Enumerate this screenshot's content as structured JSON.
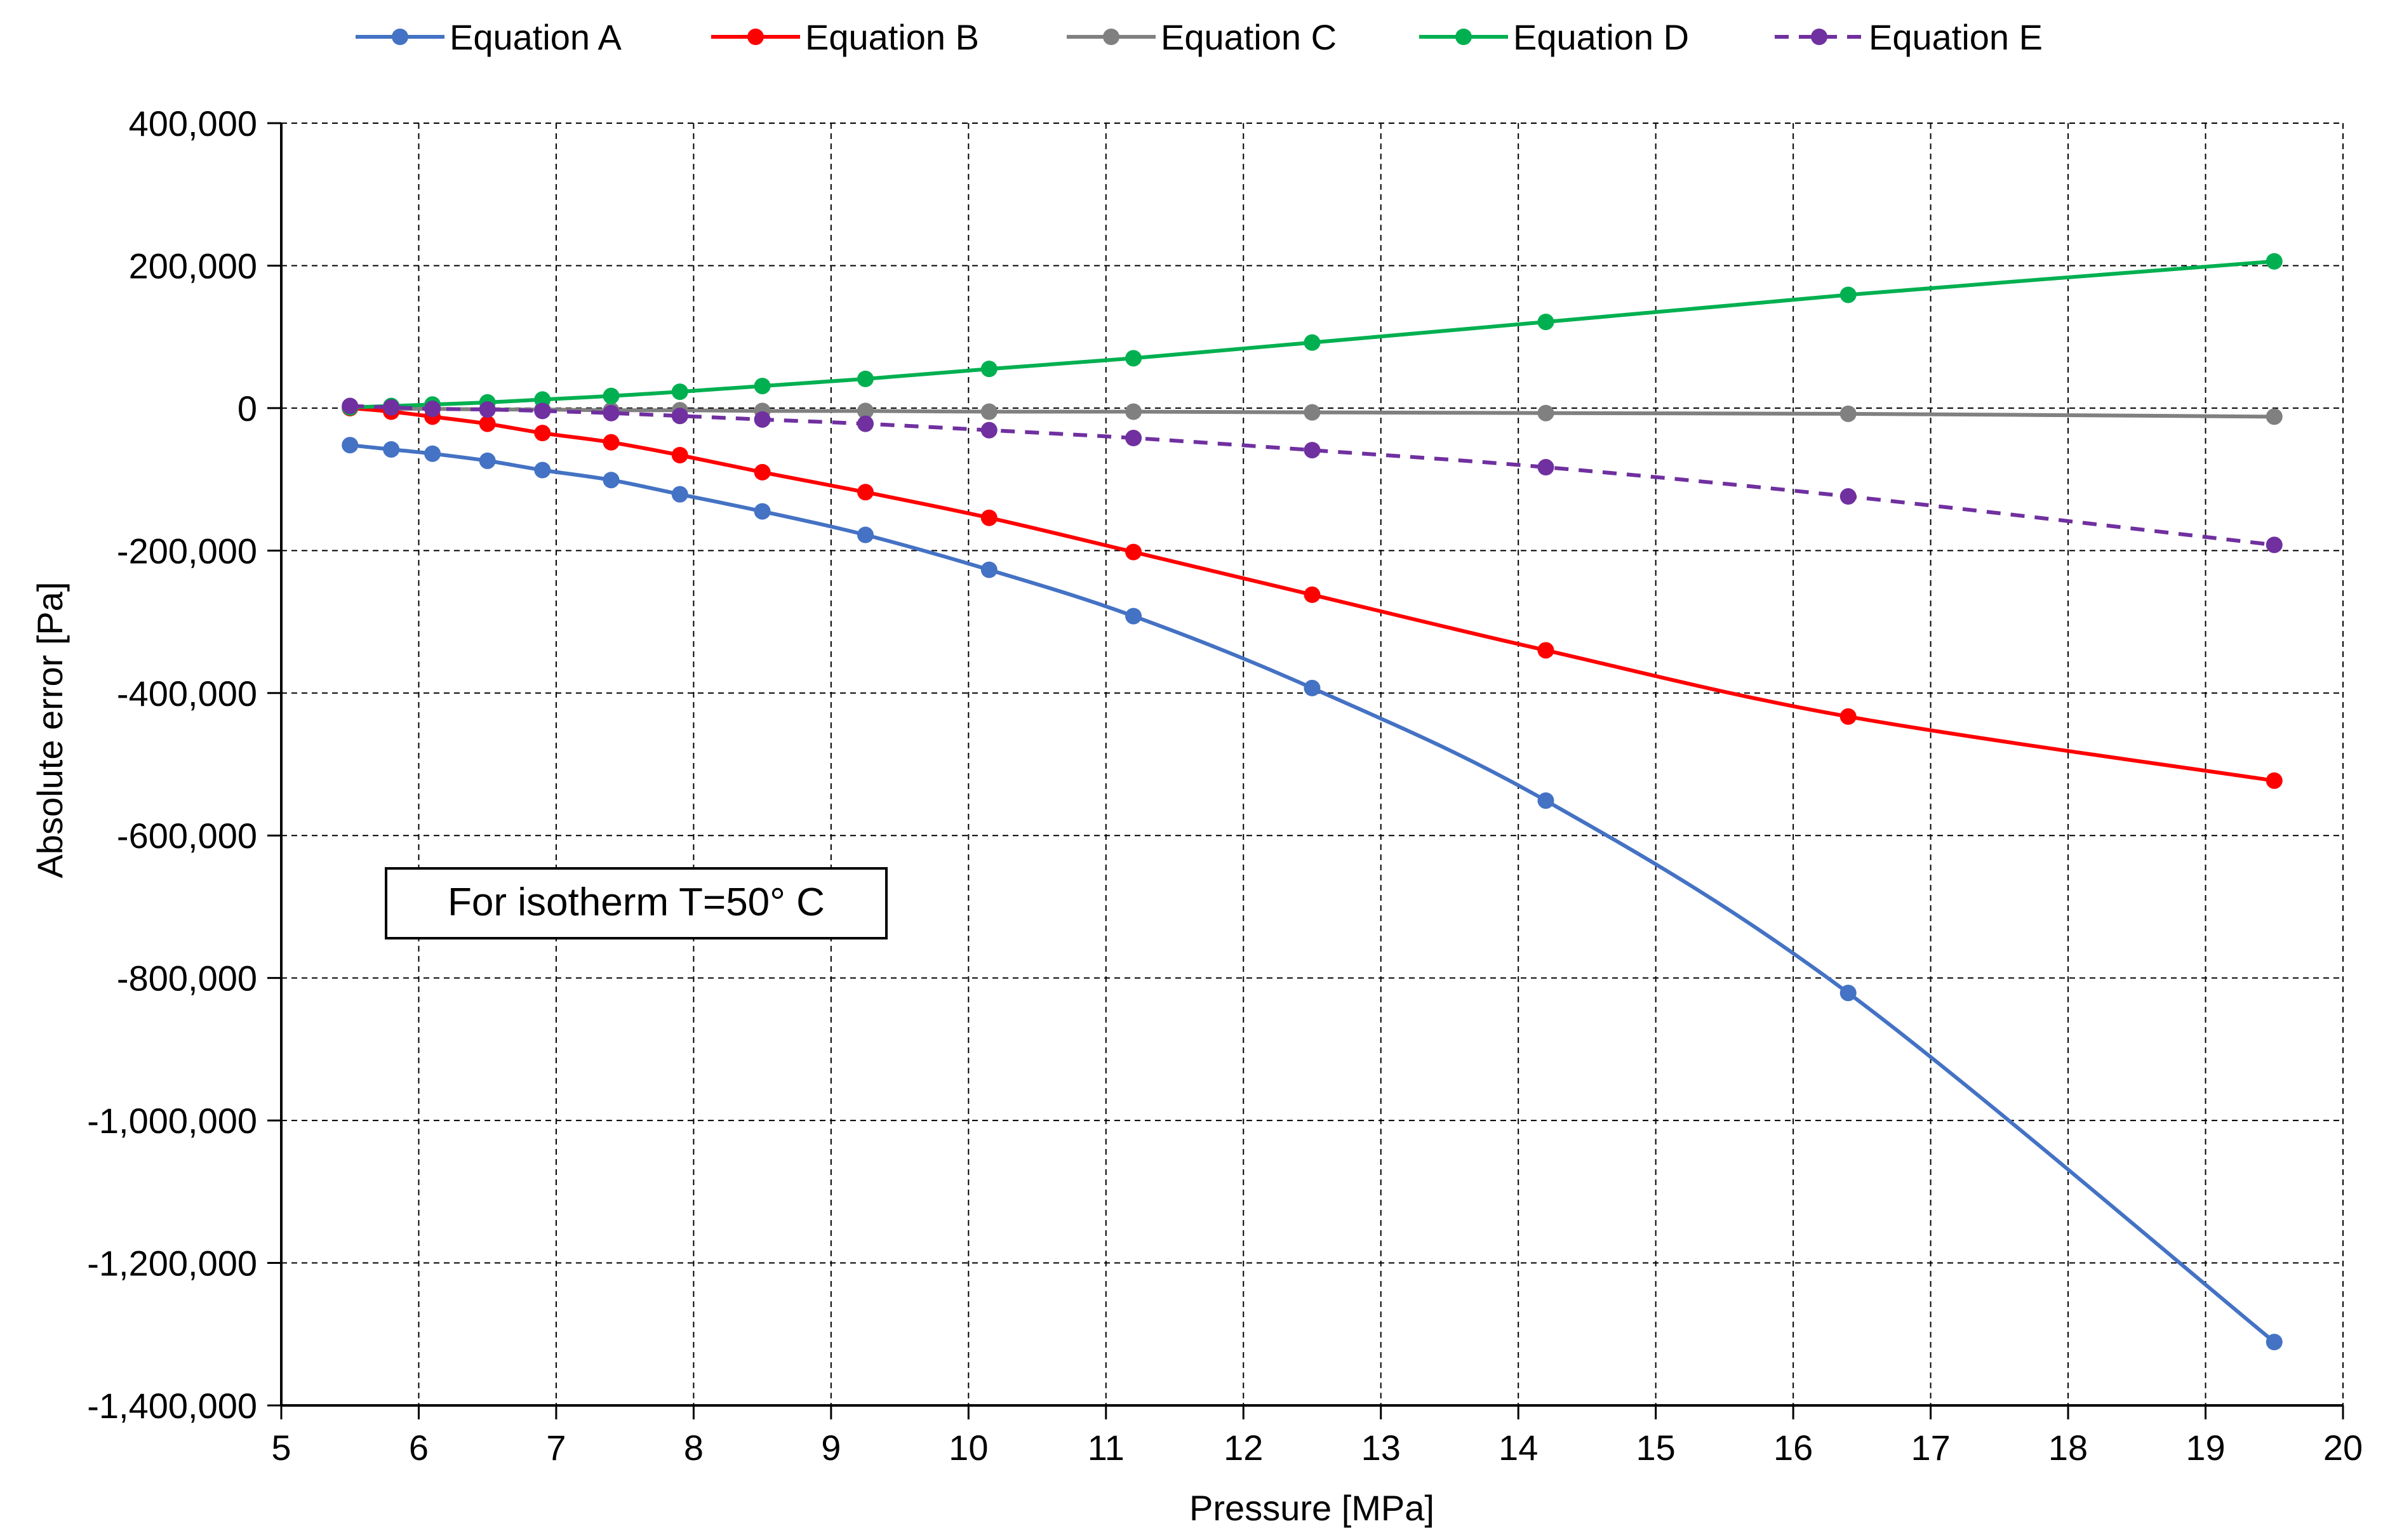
{
  "chart_data": {
    "type": "line",
    "title": "",
    "xlabel": "Pressure [MPa]",
    "ylabel": "Absolute error [Pa]",
    "xlim": [
      5,
      20
    ],
    "ylim": [
      -1400000,
      400000
    ],
    "xticks": [
      5,
      6,
      7,
      8,
      9,
      10,
      11,
      12,
      13,
      14,
      15,
      16,
      17,
      18,
      19,
      20
    ],
    "yticks": [
      400000,
      200000,
      0,
      -200000,
      -400000,
      -600000,
      -800000,
      -1000000,
      -1200000,
      -1400000
    ],
    "xtick_labels": [
      "5",
      "6",
      "7",
      "8",
      "9",
      "10",
      "11",
      "12",
      "13",
      "14",
      "15",
      "16",
      "17",
      "18",
      "19",
      "20"
    ],
    "ytick_labels": [
      "400,000",
      "200,000",
      "0",
      "-200,000",
      "-400,000",
      "-600,000",
      "-800,000",
      "-1,000,000",
      "-1,200,000",
      "-1,400,000"
    ],
    "grid": true,
    "legend_position": "top",
    "annotation": "For isotherm T=50° C",
    "x": [
      5.5,
      5.8,
      6.1,
      6.5,
      6.9,
      7.4,
      7.9,
      8.5,
      9.25,
      10.15,
      11.2,
      12.5,
      14.2,
      16.4,
      19.5
    ],
    "series": [
      {
        "name": "Equation A",
        "color": "#4472C4",
        "dashed": false,
        "values": [
          -52000,
          -58000,
          -64000,
          -74000,
          -87000,
          -101000,
          -121000,
          -145000,
          -178000,
          -227000,
          -292000,
          -393000,
          -551000,
          -821000,
          -1311000
        ]
      },
      {
        "name": "Equation B",
        "color": "#FF0000",
        "dashed": false,
        "values": [
          0,
          -5000,
          -12000,
          -22000,
          -35000,
          -48000,
          -66000,
          -90000,
          -118000,
          -154000,
          -202000,
          -262000,
          -340000,
          -433000,
          -523000
        ]
      },
      {
        "name": "Equation C",
        "color": "#808080",
        "dashed": false,
        "values": [
          0,
          -1000,
          -1000,
          -2000,
          -2000,
          -3000,
          -3000,
          -4000,
          -4000,
          -5000,
          -5000,
          -6000,
          -7000,
          -8000,
          -12000
        ]
      },
      {
        "name": "Equation D",
        "color": "#00B050",
        "dashed": false,
        "values": [
          1000,
          3000,
          5000,
          8000,
          12000,
          17000,
          23000,
          31000,
          41000,
          55000,
          70000,
          92000,
          121000,
          159000,
          206000
        ]
      },
      {
        "name": "Equation E",
        "color": "#7030A0",
        "dashed": true,
        "values": [
          3000,
          1000,
          -1000,
          -2000,
          -4000,
          -7000,
          -11000,
          -16000,
          -22000,
          -31000,
          -42000,
          -59000,
          -83000,
          -124000,
          -192000
        ]
      }
    ]
  }
}
